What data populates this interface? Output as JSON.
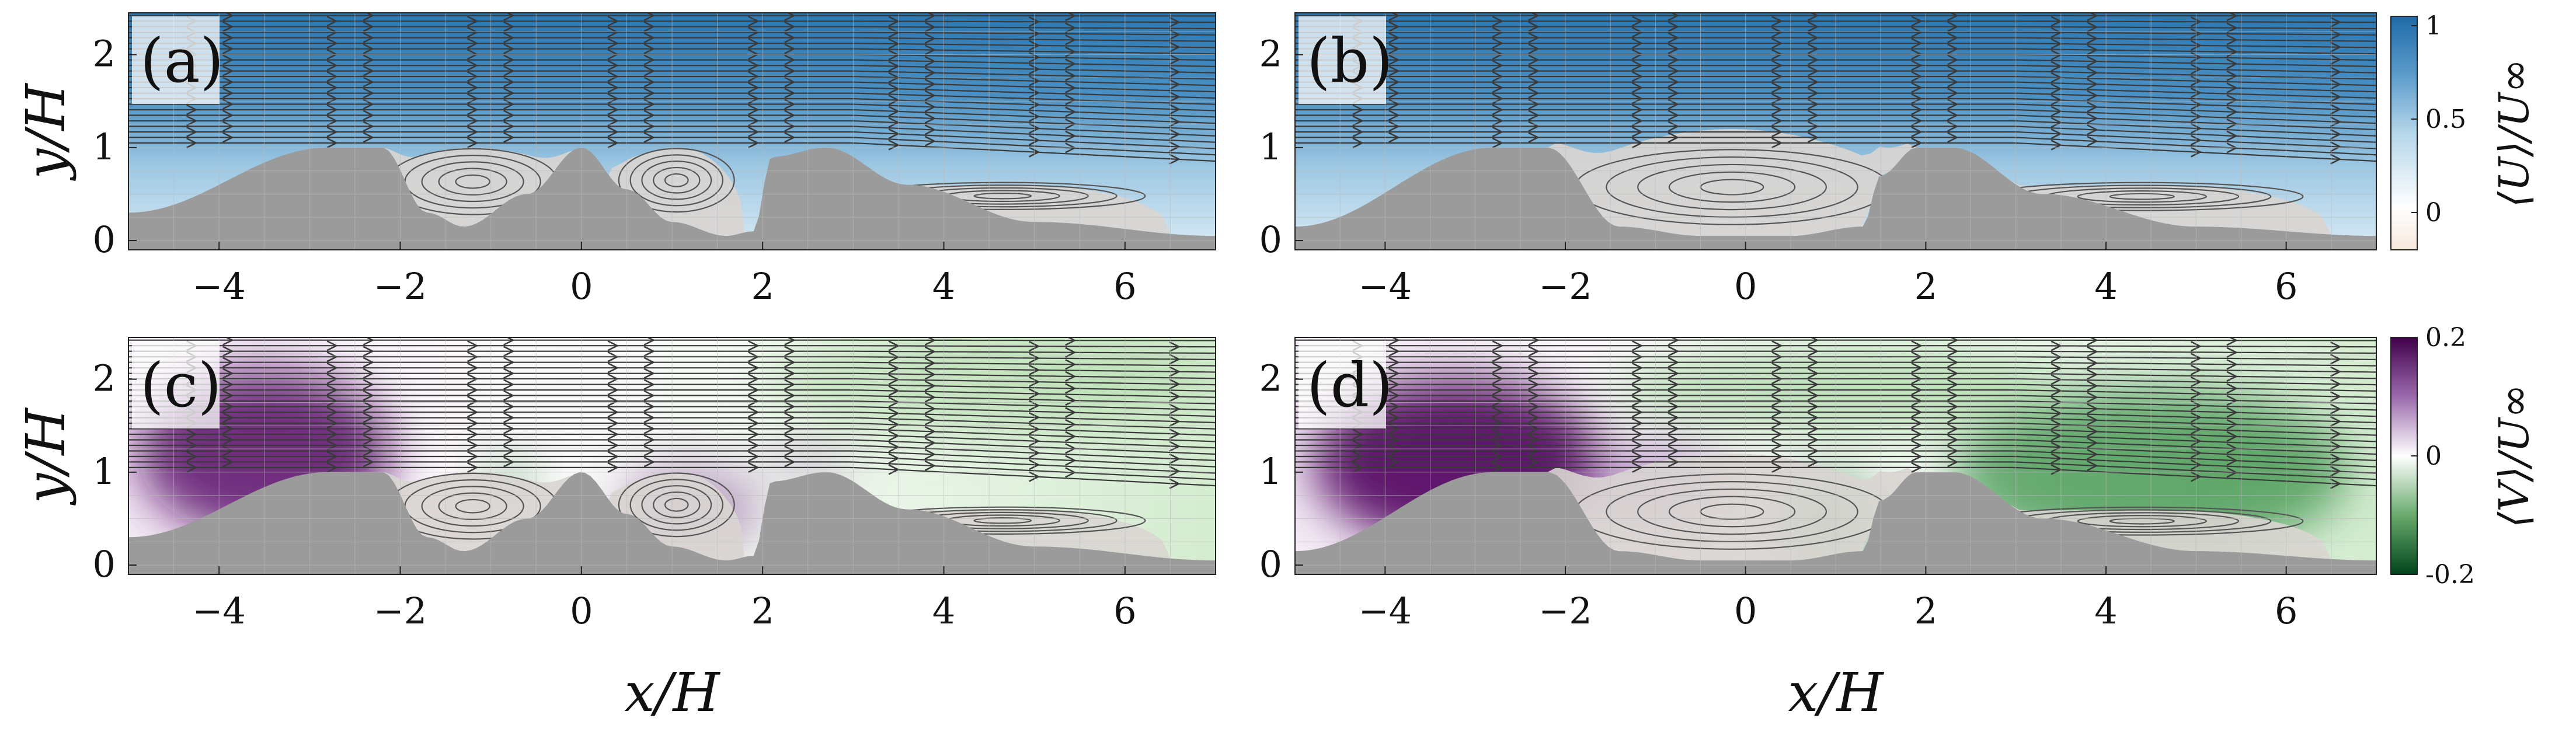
{
  "chart_data": [
    {
      "type": "heatmap",
      "panel_label": "(a)",
      "variable": "U",
      "xlabel": "",
      "ylabel": "y/H",
      "xlim": [
        -5,
        7
      ],
      "ylim": [
        -0.1,
        2.45
      ],
      "x_ticks": [
        "−4",
        "−2",
        "0",
        "2",
        "4",
        "6"
      ],
      "y_ticks": [
        "0",
        "1",
        "2"
      ],
      "terrain": {
        "x": [
          -5,
          -2.8,
          -2.2,
          -1.7,
          -1.3,
          -0.6,
          0,
          0.5,
          1.0,
          1.6,
          1.9,
          2.1,
          2.7,
          3.6,
          5.0,
          7.0
        ],
        "y": [
          0.3,
          1.0,
          1.0,
          0.3,
          0.15,
          0.5,
          1.0,
          0.55,
          0.2,
          0.05,
          0.1,
          0.9,
          1.0,
          0.6,
          0.2,
          0.05
        ]
      },
      "recirculation": [
        [
          -2.3,
          -0.1,
          1.0
        ],
        [
          0.3,
          1.8,
          1.0
        ],
        [
          2.8,
          6.5,
          0.6
        ]
      ]
    },
    {
      "type": "heatmap",
      "panel_label": "(b)",
      "variable": "U",
      "xlabel": "",
      "ylabel": "",
      "xlim": [
        -5,
        7
      ],
      "ylim": [
        -0.1,
        2.45
      ],
      "x_ticks": [
        "−4",
        "−2",
        "0",
        "2",
        "4",
        "6"
      ],
      "y_ticks": [
        "0",
        "1",
        "2"
      ],
      "terrain": {
        "x": [
          -5,
          -2.8,
          -2.2,
          -1.4,
          -0.5,
          0.5,
          1.3,
          1.5,
          1.9,
          2.3,
          3.3,
          5.0,
          7.0
        ],
        "y": [
          0.15,
          1.0,
          1.0,
          0.15,
          0.05,
          0.05,
          0.15,
          0.7,
          1.0,
          1.0,
          0.5,
          0.15,
          0.05
        ]
      },
      "recirculation": [
        [
          -2.2,
          1.9,
          1.2
        ],
        [
          2.3,
          6.5,
          0.6
        ]
      ]
    },
    {
      "type": "heatmap",
      "panel_label": "(c)",
      "variable": "V",
      "xlabel": "x/H",
      "ylabel": "y/H",
      "xlim": [
        -5,
        7
      ],
      "ylim": [
        -0.1,
        2.45
      ],
      "x_ticks": [
        "−4",
        "−2",
        "0",
        "2",
        "4",
        "6"
      ],
      "y_ticks": [
        "0",
        "1",
        "2"
      ],
      "terrain": {
        "x": [
          -5,
          -2.8,
          -2.2,
          -1.7,
          -1.3,
          -0.6,
          0,
          0.5,
          1.0,
          1.6,
          1.9,
          2.1,
          2.7,
          3.6,
          5.0,
          7.0
        ],
        "y": [
          0.3,
          1.0,
          1.0,
          0.3,
          0.15,
          0.5,
          1.0,
          0.55,
          0.2,
          0.05,
          0.1,
          0.9,
          1.0,
          0.6,
          0.2,
          0.05
        ]
      },
      "recirculation": [
        [
          -2.3,
          -0.1,
          1.0
        ],
        [
          0.3,
          1.8,
          1.0
        ],
        [
          2.8,
          6.5,
          0.6
        ]
      ]
    },
    {
      "type": "heatmap",
      "panel_label": "(d)",
      "variable": "V",
      "xlabel": "x/H",
      "ylabel": "",
      "xlim": [
        -5,
        7
      ],
      "ylim": [
        -0.1,
        2.45
      ],
      "x_ticks": [
        "−4",
        "−2",
        "0",
        "2",
        "4",
        "6"
      ],
      "y_ticks": [
        "0",
        "1",
        "2"
      ],
      "terrain": {
        "x": [
          -5,
          -2.8,
          -2.2,
          -1.4,
          -0.5,
          0.5,
          1.3,
          1.5,
          1.9,
          2.3,
          3.3,
          5.0,
          7.0
        ],
        "y": [
          0.15,
          1.0,
          1.0,
          0.15,
          0.05,
          0.05,
          0.15,
          0.7,
          1.0,
          1.0,
          0.5,
          0.15,
          0.05
        ]
      },
      "recirculation": [
        [
          -2.2,
          1.9,
          1.2
        ],
        [
          2.3,
          6.5,
          0.6
        ]
      ]
    }
  ],
  "colorbars": [
    {
      "label": "⟨U⟩/U∞",
      "ticks": [
        "1",
        "0.5",
        "0"
      ],
      "tick_values": [
        1,
        0.5,
        0
      ],
      "range": [
        -0.2,
        1.05
      ],
      "colors": [
        "#f6e8dc",
        "#ffffff",
        "#8ec0de",
        "#1f6aa8"
      ]
    },
    {
      "label": "⟨V⟩/U∞",
      "ticks": [
        "0.2",
        "0",
        "-0.2"
      ],
      "tick_values": [
        0.2,
        0,
        -0.2
      ],
      "range": [
        -0.2,
        0.2
      ],
      "colors": [
        "#00441b",
        "#7fbf7b",
        "#ffffff",
        "#c2a5cf",
        "#40004b"
      ]
    }
  ]
}
